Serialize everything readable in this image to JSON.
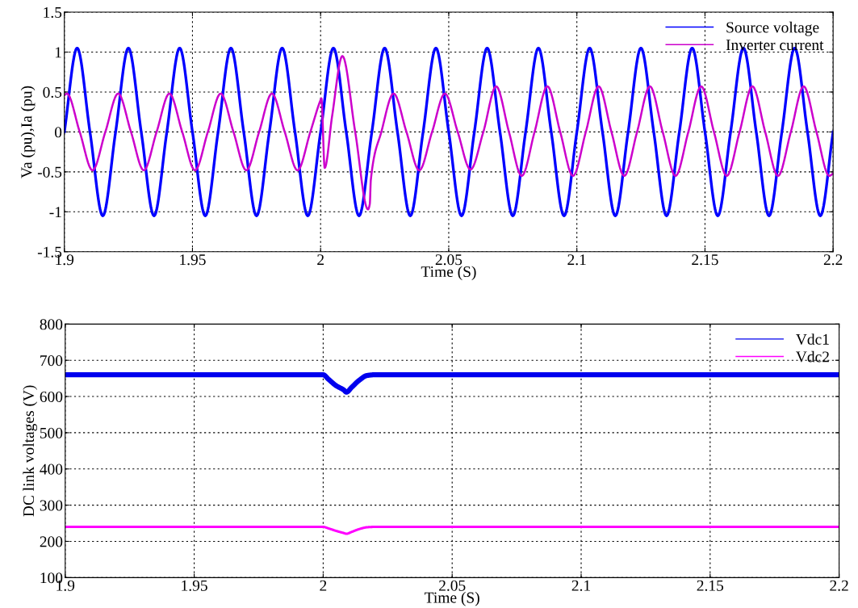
{
  "chart_data": [
    {
      "type": "line",
      "xlabel": "Time (S)",
      "ylabel": "Va (pu),Ia (pu)",
      "x": [
        1.9,
        1.905,
        1.91,
        1.915,
        1.92,
        1.925,
        1.93,
        1.935,
        1.94,
        1.945,
        1.95,
        1.955,
        1.96,
        1.965,
        1.97,
        1.975,
        1.98,
        1.985,
        1.99,
        1.995,
        2.0,
        2.005,
        2.01,
        2.015,
        2.02,
        2.025,
        2.03,
        2.035,
        2.04,
        2.045,
        2.05,
        2.055,
        2.06,
        2.065,
        2.07,
        2.075,
        2.08,
        2.085,
        2.09,
        2.095,
        2.1,
        2.105,
        2.11,
        2.115,
        2.12,
        2.125,
        2.13,
        2.135,
        2.14,
        2.145,
        2.15,
        2.155,
        2.16,
        2.165,
        2.17,
        2.175,
        2.18,
        2.185,
        2.19,
        2.195,
        2.2
      ],
      "series": [
        {
          "name": "Source voltage",
          "color": "#0000ff",
          "values": [
            0,
            1.05,
            0,
            -1.05,
            0,
            1.05,
            0,
            -1.05,
            0,
            1.05,
            0,
            -1.05,
            0,
            1.05,
            0,
            -1.05,
            0,
            1.05,
            0,
            -1.05,
            0,
            1.05,
            0,
            -1.05,
            0,
            1.05,
            0,
            -1.05,
            0,
            1.05,
            0,
            -1.05,
            0,
            1.05,
            0,
            -1.05,
            0,
            1.05,
            0,
            -1.05,
            0,
            1.05,
            0,
            -1.05,
            0,
            1.05,
            0,
            -1.05,
            0,
            1.05,
            0,
            -1.05,
            0,
            1.05,
            0,
            -1.05,
            0,
            1.05,
            0,
            -1.05,
            0
          ]
        },
        {
          "name": "Inverter current",
          "color": "#cc00cc",
          "x": [
            1.9,
            1.901,
            1.906,
            1.911,
            1.916,
            1.921,
            1.926,
            1.931,
            1.936,
            1.941,
            1.946,
            1.951,
            1.956,
            1.961,
            1.966,
            1.971,
            1.976,
            1.981,
            1.986,
            1.991,
            1.996,
            2.0,
            2.0003,
            2.0016,
            2.0045,
            2.0085,
            2.0135,
            2.0185,
            2.0192,
            2.0196,
            2.0237,
            2.0285,
            2.0335,
            2.0385,
            2.0435,
            2.0485,
            2.0535,
            2.0585,
            2.0635,
            2.0685,
            2.0735,
            2.0785,
            2.0835,
            2.0885,
            2.0935,
            2.0985,
            2.1035,
            2.1085,
            2.1135,
            2.1185,
            2.1235,
            2.1285,
            2.1335,
            2.1385,
            2.1435,
            2.1485,
            2.1535,
            2.1585,
            2.1635,
            2.1685,
            2.1735,
            2.1785,
            2.1835,
            2.1885,
            2.1935,
            2.1985,
            2.2
          ],
          "values": [
            0.46,
            0.48,
            0,
            -0.48,
            0,
            0.48,
            0,
            -0.48,
            0,
            0.48,
            0,
            -0.48,
            0,
            0.48,
            0,
            -0.48,
            0,
            0.48,
            0,
            -0.48,
            0,
            0.4,
            0.42,
            -0.45,
            0.2,
            0.95,
            0,
            -0.97,
            -0.9,
            -0.6,
            0,
            0.48,
            0,
            -0.48,
            0,
            0.48,
            0,
            -0.47,
            0,
            0.57,
            0,
            -0.55,
            0,
            0.57,
            0,
            -0.55,
            0,
            0.57,
            0,
            -0.55,
            0,
            0.57,
            0,
            -0.55,
            0,
            0.57,
            0,
            -0.55,
            0,
            0.57,
            0,
            -0.55,
            0,
            0.57,
            0,
            -0.55,
            -0.52
          ]
        }
      ],
      "xlim": [
        1.9,
        2.2
      ],
      "ylim": [
        -1.5,
        1.5
      ],
      "xticks": [
        1.9,
        1.95,
        2,
        2.05,
        2.1,
        2.15,
        2.2
      ],
      "yticks": [
        -1.5,
        -1,
        -0.5,
        0,
        0.5,
        1,
        1.5
      ],
      "grid": true,
      "legend": "top right"
    },
    {
      "type": "line",
      "xlabel": "Time (S)",
      "ylabel": "DC link voltages (V)",
      "x": [
        1.9,
        1.95,
        2.0,
        2.002,
        2.005,
        2.008,
        2.009,
        2.011,
        2.014,
        2.017,
        2.02,
        2.05,
        2.1,
        2.15,
        2.2
      ],
      "series": [
        {
          "name": "Vdc1",
          "color": "#0000ee",
          "values": [
            660,
            660,
            660,
            648,
            630,
            618,
            612,
            625,
            645,
            658,
            660,
            660,
            660,
            660,
            660
          ]
        },
        {
          "name": "Vdc2",
          "color": "#ff00ff",
          "values": [
            240,
            240,
            240,
            236,
            229,
            223,
            221,
            226,
            234,
            239,
            240,
            240,
            240,
            240,
            240
          ]
        }
      ],
      "xlim": [
        1.9,
        2.2
      ],
      "ylim": [
        100,
        800
      ],
      "xticks": [
        1.9,
        1.95,
        2,
        2.05,
        2.1,
        2.15,
        2.2
      ],
      "yticks": [
        100,
        200,
        300,
        400,
        500,
        600,
        700,
        800
      ],
      "grid": true,
      "legend": "top right"
    }
  ]
}
